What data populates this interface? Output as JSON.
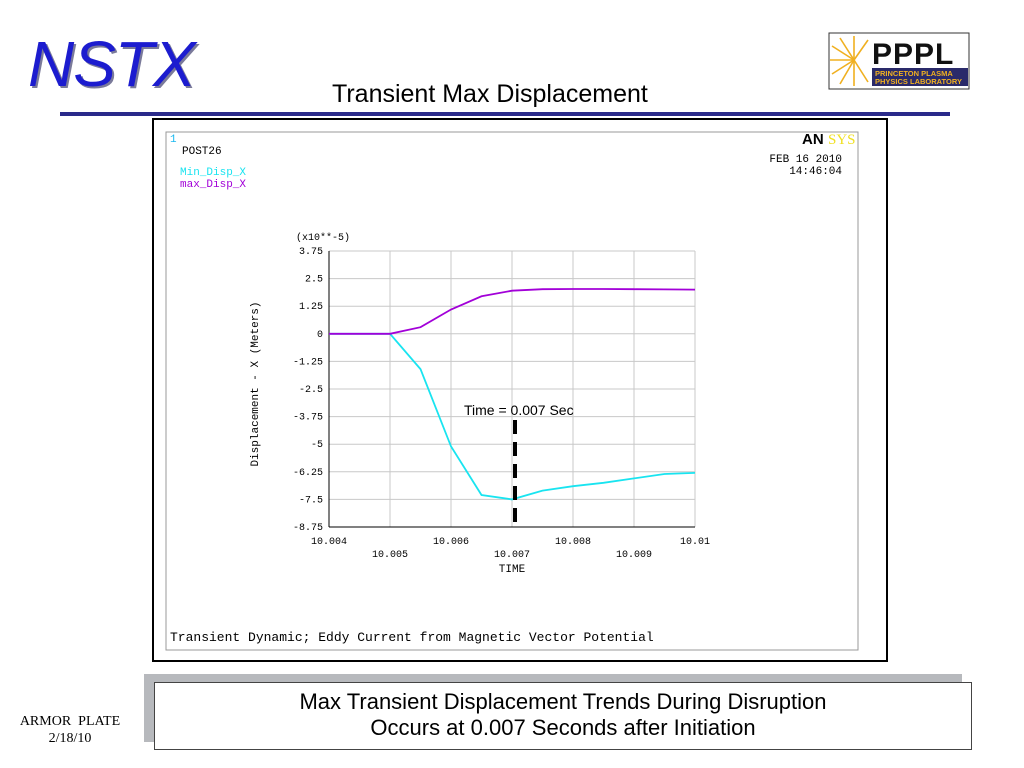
{
  "header": {
    "logo_text": "NSTX",
    "title": "Transient Max Displacement",
    "pppl_logo": {
      "main": "PPPL",
      "line1": "PRINCETON PLASMA",
      "line2": "PHYSICS LABORATORY"
    }
  },
  "plot_panel": {
    "window_number": "1",
    "program": "POST26",
    "series_labels": [
      "Min_Disp_X",
      "max_Disp_X"
    ],
    "ansys_logo": {
      "left": "AN",
      "right": "SYS"
    },
    "date": "FEB 16 2010",
    "time": "14:46:04",
    "footer": "Transient Dynamic; Eddy Current from Magnetic Vector Potential",
    "annotation": "Time = 0.007 Sec",
    "colors": {
      "min": "#19e4f0",
      "max": "#a200d8",
      "grid": "#c8c8c8"
    }
  },
  "chart_data": {
    "type": "line",
    "ylabel": "Displacement - X (Meters)",
    "xlabel": "TIME",
    "y_multiplier": "(x10**-5)",
    "xlim": [
      10.004,
      10.01
    ],
    "ylim": [
      -8.75,
      3.75
    ],
    "x_ticks": [
      "10.004",
      "10.005",
      "10.006",
      "10.007",
      "10.008",
      "10.009",
      "10.01"
    ],
    "y_ticks": [
      "3.75",
      "2.5",
      "1.25",
      "0",
      "-1.25",
      "-2.5",
      "-3.75",
      "-5",
      "-6.25",
      "-7.5",
      "-8.75"
    ],
    "x": [
      10.004,
      10.005,
      10.0055,
      10.006,
      10.0065,
      10.007,
      10.0075,
      10.008,
      10.0085,
      10.009,
      10.0095,
      10.01
    ],
    "series": [
      {
        "name": "Min_Disp_X",
        "values": [
          0,
          0,
          -1.6,
          -5.1,
          -7.3,
          -7.5,
          -7.1,
          -6.9,
          -6.75,
          -6.55,
          -6.35,
          -6.3
        ]
      },
      {
        "name": "max_Disp_X",
        "values": [
          0,
          0,
          0.3,
          1.1,
          1.7,
          1.95,
          2.02,
          2.03,
          2.03,
          2.02,
          2.01,
          2.0
        ]
      }
    ],
    "marker_x": 10.007,
    "grid": true
  },
  "caption": {
    "line1": "Max Transient Displacement Trends During Disruption",
    "line2": "Occurs at 0.007 Seconds after Initiation"
  },
  "footer": {
    "line1": "ARMOR  PLATE",
    "line2": "2/18/10"
  }
}
